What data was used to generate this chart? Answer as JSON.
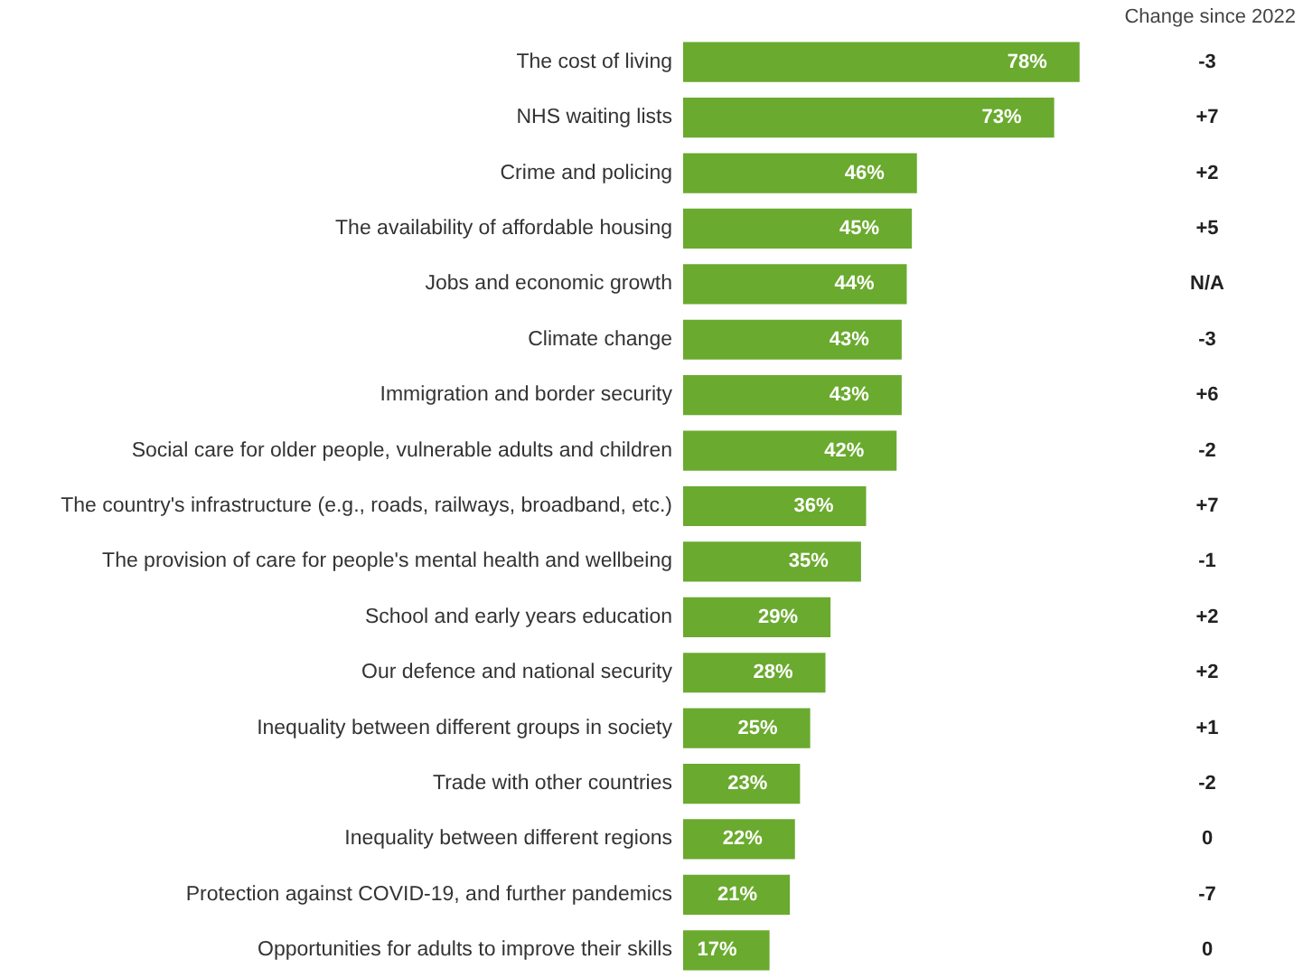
{
  "chart_data": {
    "type": "bar",
    "orientation": "horizontal",
    "categories": [
      "The cost of living",
      "NHS waiting lists",
      "Crime and policing",
      "The availability of affordable housing",
      "Jobs and economic growth",
      "Climate change",
      "Immigration and border security",
      "Social care for older people, vulnerable adults and children",
      "The country's infrastructure (e.g., roads, railways, broadband, etc.)",
      "The provision of care for people's mental health and wellbeing",
      "School and early years education",
      "Our defence and national security",
      "Inequality between different groups in society",
      "Trade with other countries",
      "Inequality between different regions",
      "Protection against COVID-19, and further pandemics",
      "Opportunities for adults to improve their skills"
    ],
    "values": [
      78,
      73,
      46,
      45,
      44,
      43,
      43,
      42,
      36,
      35,
      29,
      28,
      25,
      23,
      22,
      21,
      17
    ],
    "value_labels": [
      "78%",
      "73%",
      "46%",
      "45%",
      "44%",
      "43%",
      "43%",
      "42%",
      "36%",
      "35%",
      "29%",
      "28%",
      "25%",
      "23%",
      "22%",
      "21%",
      "17%"
    ],
    "color": "#6aaa2e",
    "tick_labels": "y",
    "annotations": [
      "Change since 2022",
      "-3",
      "+7",
      "+2",
      "+5",
      "N/A",
      "-3",
      "+6",
      "-2",
      "+7",
      "-1",
      "+2",
      "+2",
      "+1",
      "-2",
      "0",
      "-7",
      "0"
    ]
  }
}
